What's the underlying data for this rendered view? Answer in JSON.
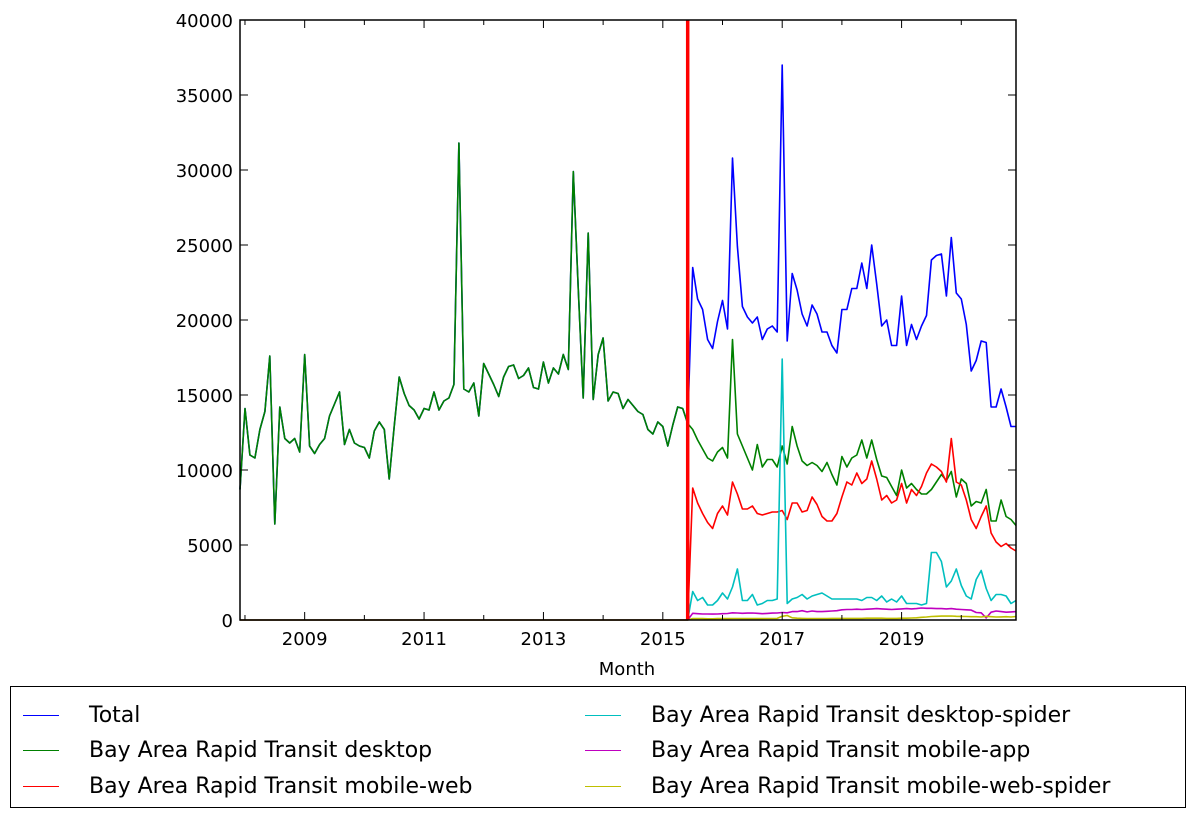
{
  "chart_data": {
    "type": "line",
    "title": "",
    "xlabel": "Month",
    "ylabel": "",
    "x_start_month": "2007-12",
    "x_end_month": "2020-12",
    "ylim": [
      0,
      40000
    ],
    "yticks": [
      0,
      5000,
      10000,
      15000,
      20000,
      25000,
      30000,
      35000,
      40000
    ],
    "xtick_labels": [
      "2009",
      "2011",
      "2013",
      "2015",
      "2017",
      "2019"
    ],
    "grid": false,
    "legend_placement": "below",
    "vline": {
      "month": "2015-06",
      "color": "#ff0000"
    },
    "series": [
      {
        "name": "Total",
        "color": "#0000ff",
        "start_month": "2007-12",
        "values": [
          8700,
          14100,
          11000,
          10800,
          12700,
          13900,
          17600,
          6400,
          14200,
          12100,
          11800,
          12100,
          11200,
          17700,
          11600,
          11100,
          11700,
          12100,
          13600,
          14400,
          15200,
          11700,
          12700,
          11800,
          11600,
          11500,
          10800,
          12600,
          13200,
          12700,
          9400,
          12900,
          16200,
          15100,
          14300,
          14000,
          13400,
          14100,
          14000,
          15200,
          14000,
          14600,
          14800,
          15700,
          31800,
          15400,
          15200,
          15800,
          13600,
          17100,
          16400,
          15700,
          14900,
          16200,
          16900,
          17000,
          16100,
          16300,
          16800,
          15500,
          15400,
          17200,
          15800,
          16800,
          16400,
          17700,
          16700,
          29900,
          22000,
          14800,
          25800,
          14700,
          17700,
          18800,
          14600,
          15200,
          15100,
          14100,
          14700,
          14300,
          13900,
          13700,
          12700,
          12400,
          13200,
          12900,
          11600,
          13000,
          14200,
          14100,
          13100,
          23500,
          21400,
          20700,
          18700,
          18100,
          19900,
          21300,
          19400,
          30800,
          24900,
          20900,
          20200,
          19800,
          20200,
          18700,
          19400,
          19600,
          19200,
          37000,
          18600,
          23100,
          22000,
          20400,
          19600,
          21000,
          20400,
          19200,
          19200,
          18300,
          17800,
          20700,
          20700,
          22100,
          22100,
          23800,
          22100,
          25000,
          22400,
          19600,
          20000,
          18300,
          18300,
          21600,
          18300,
          19700,
          18700,
          19600,
          20300,
          24000,
          24300,
          24400,
          21600,
          25500,
          21800,
          21400,
          19700,
          16600,
          17300,
          18600,
          18500,
          14200,
          14200,
          15400,
          14200,
          12900,
          12900
        ]
      },
      {
        "name": "Bay Area Rapid Transit desktop",
        "color": "#008000",
        "start_month": "2007-12",
        "values": [
          8700,
          14100,
          11000,
          10800,
          12700,
          13900,
          17600,
          6400,
          14200,
          12100,
          11800,
          12100,
          11200,
          17700,
          11600,
          11100,
          11700,
          12100,
          13600,
          14400,
          15200,
          11700,
          12700,
          11800,
          11600,
          11500,
          10800,
          12600,
          13200,
          12700,
          9400,
          12900,
          16200,
          15100,
          14300,
          14000,
          13400,
          14100,
          14000,
          15200,
          14000,
          14600,
          14800,
          15700,
          31800,
          15400,
          15200,
          15800,
          13600,
          17100,
          16400,
          15700,
          14900,
          16200,
          16900,
          17000,
          16100,
          16300,
          16800,
          15500,
          15400,
          17200,
          15800,
          16800,
          16400,
          17700,
          16700,
          29900,
          22000,
          14800,
          25800,
          14700,
          17700,
          18800,
          14600,
          15200,
          15100,
          14100,
          14700,
          14300,
          13900,
          13700,
          12700,
          12400,
          13200,
          12900,
          11600,
          13000,
          14200,
          14100,
          13100,
          12700,
          12000,
          11400,
          10800,
          10600,
          11200,
          11500,
          10800,
          18700,
          12400,
          11600,
          10800,
          10000,
          11700,
          10200,
          10700,
          10700,
          10200,
          11600,
          10400,
          12900,
          11600,
          10600,
          10300,
          10500,
          10300,
          9900,
          10500,
          9700,
          9000,
          10900,
          10200,
          10800,
          11000,
          12000,
          10800,
          12000,
          10700,
          9600,
          9500,
          8900,
          8300,
          10000,
          8800,
          9100,
          8700,
          8400,
          8400,
          8700,
          9200,
          9700,
          9300,
          9900,
          8200,
          9400,
          9100,
          7600,
          7900,
          7800,
          8700,
          6600,
          6600,
          8000,
          6900,
          6700,
          6300
        ]
      },
      {
        "name": "Bay Area Rapid Transit mobile-web",
        "color": "#ff0000",
        "start_month": "2015-07",
        "zero_before_start": true,
        "values": [
          8800,
          7800,
          7100,
          6500,
          6100,
          7100,
          7600,
          7000,
          9200,
          8400,
          7400,
          7400,
          7600,
          7100,
          7000,
          7100,
          7200,
          7200,
          7300,
          6700,
          7800,
          7800,
          7200,
          7300,
          8200,
          7700,
          6900,
          6600,
          6600,
          7100,
          8200,
          9200,
          9000,
          9800,
          9100,
          9400,
          10600,
          9400,
          8000,
          8300,
          7800,
          8000,
          9100,
          7800,
          8700,
          8300,
          8900,
          9800,
          10400,
          10200,
          9900,
          9200,
          12100,
          9200,
          9000,
          8000,
          6700,
          6100,
          6900,
          7600,
          5800,
          5200,
          4900,
          5100,
          4800,
          4600
        ]
      },
      {
        "name": "Bay Area Rapid Transit desktop-spider",
        "color": "#00bfbf",
        "start_month": "2015-07",
        "zero_before_start": true,
        "values": [
          1900,
          1300,
          1500,
          1000,
          1000,
          1300,
          1800,
          1400,
          2200,
          3400,
          1300,
          1300,
          1700,
          1000,
          1100,
          1300,
          1300,
          1400,
          17400,
          1100,
          1400,
          1500,
          1700,
          1400,
          1600,
          1700,
          1800,
          1600,
          1400,
          1400,
          1400,
          1400,
          1400,
          1400,
          1300,
          1500,
          1500,
          1300,
          1600,
          1200,
          1400,
          1200,
          1600,
          1100,
          1100,
          1100,
          1000,
          1100,
          4500,
          4500,
          3900,
          2200,
          2600,
          3400,
          2300,
          1600,
          1400,
          2700,
          3300,
          2100,
          1300,
          1700,
          1700,
          1600,
          1100,
          1300
        ]
      },
      {
        "name": "Bay Area Rapid Transit mobile-app",
        "color": "#bf00bf",
        "start_month": "2015-07",
        "zero_before_start": true,
        "values": [
          450,
          420,
          400,
          400,
          390,
          400,
          420,
          430,
          480,
          470,
          450,
          460,
          470,
          450,
          420,
          440,
          460,
          470,
          500,
          480,
          560,
          560,
          620,
          540,
          600,
          560,
          560,
          580,
          600,
          620,
          680,
          700,
          700,
          720,
          700,
          720,
          740,
          760,
          740,
          720,
          700,
          720,
          740,
          760,
          740,
          760,
          800,
          780,
          780,
          760,
          760,
          740,
          760,
          720,
          700,
          680,
          660,
          500,
          480,
          140,
          520,
          600,
          560,
          520,
          540,
          560
        ]
      },
      {
        "name": "Bay Area Rapid Transit mobile-web-spider",
        "color": "#bfbf00",
        "start_month": "2015-07",
        "zero_before_start": true,
        "values": [
          100,
          90,
          90,
          80,
          80,
          90,
          90,
          90,
          100,
          100,
          90,
          90,
          90,
          90,
          90,
          100,
          100,
          110,
          250,
          300,
          150,
          120,
          110,
          100,
          100,
          100,
          100,
          100,
          110,
          110,
          110,
          110,
          110,
          110,
          110,
          120,
          120,
          120,
          120,
          110,
          110,
          110,
          120,
          120,
          130,
          150,
          180,
          200,
          230,
          250,
          260,
          260,
          270,
          250,
          240,
          230,
          220,
          220,
          200,
          250,
          220,
          200,
          210,
          220,
          200,
          230
        ]
      }
    ]
  }
}
